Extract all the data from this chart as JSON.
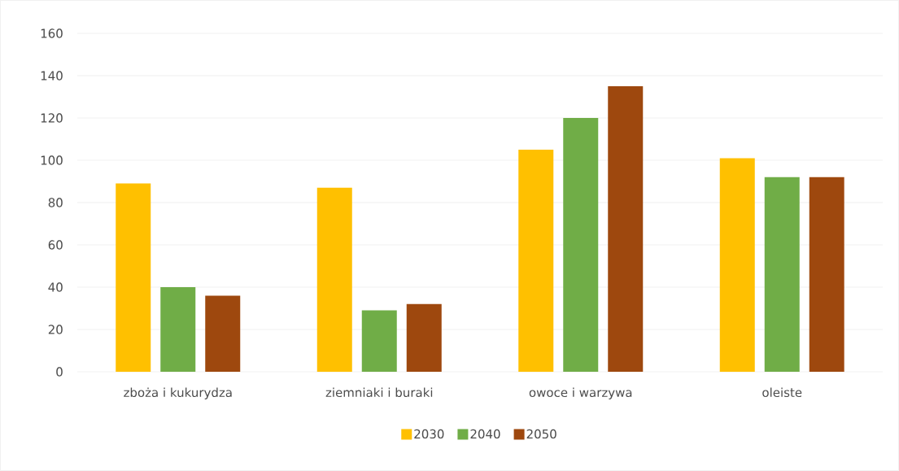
{
  "chart_data": {
    "type": "bar",
    "categories": [
      "zboża i kukurydza",
      "ziemniaki i buraki",
      "owoce i warzywa",
      "oleiste"
    ],
    "series": [
      {
        "name": "2030",
        "color": "#ffc000",
        "values": [
          89,
          87,
          105,
          101
        ]
      },
      {
        "name": "2040",
        "color": "#70ad47",
        "values": [
          40,
          29,
          120,
          92
        ]
      },
      {
        "name": "2050",
        "color": "#9e480e",
        "values": [
          36,
          32,
          135,
          92
        ]
      }
    ],
    "ylim": [
      0,
      160
    ],
    "yticks": [
      0,
      20,
      40,
      60,
      80,
      100,
      120,
      140,
      160
    ],
    "grid": "y",
    "legend": "bottom"
  }
}
